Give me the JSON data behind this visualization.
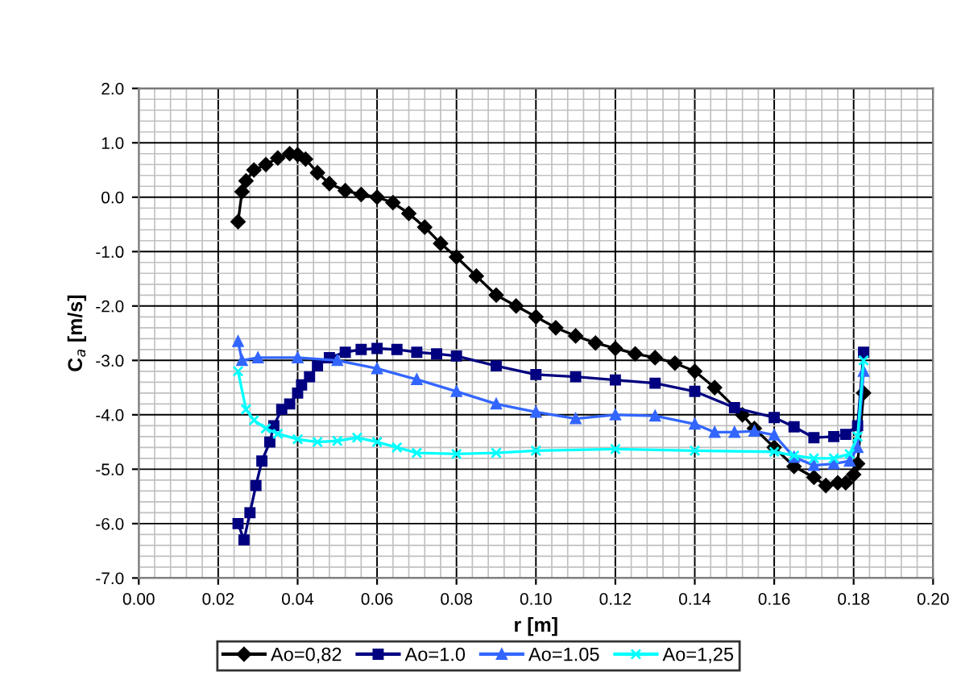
{
  "chart_data": {
    "type": "line",
    "xlabel": "r [m]",
    "ylabel": "C$_{a}$ [m/s]",
    "xlim": [
      0,
      0.2
    ],
    "ylim": [
      -7,
      2
    ],
    "xticks": [
      {
        "value": 0,
        "label": "0.00"
      },
      {
        "value": 0.02,
        "label": "0.02"
      },
      {
        "value": 0.04,
        "label": "0.04"
      },
      {
        "value": 0.06,
        "label": "0.06"
      },
      {
        "value": 0.08,
        "label": "0.08"
      },
      {
        "value": 0.1,
        "label": "0.10"
      },
      {
        "value": 0.12,
        "label": "0.12"
      },
      {
        "value": 0.14,
        "label": "0.14"
      },
      {
        "value": 0.16,
        "label": "0.16"
      },
      {
        "value": 0.18,
        "label": "0.18"
      },
      {
        "value": 0.2,
        "label": "0.20"
      }
    ],
    "yticks": [
      {
        "value": -7,
        "label": "-7.0"
      },
      {
        "value": -6,
        "label": "-6.0"
      },
      {
        "value": -5,
        "label": "-5.0"
      },
      {
        "value": -4,
        "label": "-4.0"
      },
      {
        "value": -3,
        "label": "-3.0"
      },
      {
        "value": -2,
        "label": "-2.0"
      },
      {
        "value": -1,
        "label": "-1.0"
      },
      {
        "value": 0,
        "label": "0.0"
      },
      {
        "value": 1,
        "label": "1.0"
      },
      {
        "value": 2,
        "label": "2.0"
      }
    ],
    "grid": true,
    "legend": "bottom",
    "line_style": "solid",
    "series": [
      {
        "name": "Ao=0,82",
        "color": "#000000",
        "marker": "diamond",
        "x": [
          0.025,
          0.026,
          0.027,
          0.029,
          0.032,
          0.035,
          0.038,
          0.04,
          0.042,
          0.045,
          0.048,
          0.052,
          0.056,
          0.06,
          0.064,
          0.068,
          0.072,
          0.076,
          0.08,
          0.085,
          0.09,
          0.095,
          0.1,
          0.105,
          0.11,
          0.115,
          0.12,
          0.125,
          0.13,
          0.135,
          0.14,
          0.145,
          0.152,
          0.155,
          0.16,
          0.165,
          0.17,
          0.173,
          0.176,
          0.178,
          0.18,
          0.181,
          0.1825
        ],
        "values": [
          -0.45,
          0.1,
          0.3,
          0.5,
          0.6,
          0.72,
          0.8,
          0.78,
          0.7,
          0.45,
          0.25,
          0.12,
          0.05,
          0.0,
          -0.1,
          -0.3,
          -0.55,
          -0.85,
          -1.1,
          -1.45,
          -1.8,
          -2.0,
          -2.2,
          -2.4,
          -2.55,
          -2.68,
          -2.78,
          -2.88,
          -2.95,
          -3.05,
          -3.2,
          -3.5,
          -4.0,
          -4.25,
          -4.6,
          -4.95,
          -5.15,
          -5.3,
          -5.25,
          -5.25,
          -5.1,
          -4.9,
          -3.6
        ]
      },
      {
        "name": "Ao=1.0",
        "color": "#000080",
        "marker": "square",
        "x": [
          0.025,
          0.0265,
          0.028,
          0.0295,
          0.031,
          0.033,
          0.034,
          0.036,
          0.038,
          0.04,
          0.041,
          0.043,
          0.045,
          0.048,
          0.052,
          0.056,
          0.06,
          0.065,
          0.07,
          0.075,
          0.08,
          0.09,
          0.1,
          0.11,
          0.12,
          0.13,
          0.14,
          0.15,
          0.16,
          0.165,
          0.17,
          0.175,
          0.178,
          0.181,
          0.1825
        ],
        "values": [
          -6.0,
          -6.3,
          -5.8,
          -5.3,
          -4.85,
          -4.5,
          -4.2,
          -3.9,
          -3.8,
          -3.6,
          -3.45,
          -3.3,
          -3.1,
          -2.95,
          -2.85,
          -2.8,
          -2.78,
          -2.8,
          -2.85,
          -2.88,
          -2.92,
          -3.1,
          -3.26,
          -3.3,
          -3.36,
          -3.42,
          -3.57,
          -3.87,
          -4.05,
          -4.22,
          -4.42,
          -4.4,
          -4.36,
          -4.2,
          -2.85
        ]
      },
      {
        "name": "Ao=1.05",
        "color": "#3366ff",
        "marker": "triangle",
        "x": [
          0.025,
          0.026,
          0.03,
          0.04,
          0.05,
          0.06,
          0.07,
          0.08,
          0.09,
          0.1,
          0.11,
          0.12,
          0.13,
          0.14,
          0.145,
          0.15,
          0.155,
          0.16,
          0.165,
          0.17,
          0.175,
          0.179,
          0.181,
          0.1825
        ],
        "values": [
          -2.65,
          -3.0,
          -2.95,
          -2.95,
          -3.0,
          -3.15,
          -3.35,
          -3.57,
          -3.8,
          -3.95,
          -4.07,
          -4.0,
          -4.02,
          -4.17,
          -4.32,
          -4.32,
          -4.3,
          -4.37,
          -4.78,
          -4.93,
          -4.9,
          -4.85,
          -4.6,
          -3.2
        ]
      },
      {
        "name": "Ao=1,25",
        "color": "#00ffff",
        "marker": "cross",
        "x": [
          0.025,
          0.027,
          0.029,
          0.032,
          0.035,
          0.04,
          0.045,
          0.05,
          0.055,
          0.06,
          0.065,
          0.07,
          0.08,
          0.09,
          0.1,
          0.12,
          0.14,
          0.16,
          0.165,
          0.17,
          0.175,
          0.179,
          0.181,
          0.1825
        ],
        "values": [
          -3.2,
          -3.9,
          -4.1,
          -4.25,
          -4.35,
          -4.45,
          -4.5,
          -4.48,
          -4.42,
          -4.5,
          -4.6,
          -4.7,
          -4.72,
          -4.7,
          -4.66,
          -4.63,
          -4.66,
          -4.68,
          -4.75,
          -4.8,
          -4.8,
          -4.72,
          -4.4,
          -3.0
        ]
      }
    ]
  }
}
